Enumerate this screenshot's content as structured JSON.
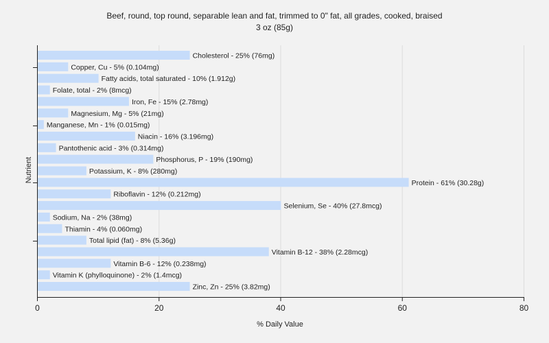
{
  "chart_data": {
    "type": "bar",
    "orientation": "horizontal",
    "title": "Beef, round, top round, separable lean and fat, trimmed to 0\" fat, all grades, cooked, braised",
    "subtitle": "3 oz (85g)",
    "xlabel": "% Daily Value",
    "ylabel": "Nutrient",
    "xlim": [
      0,
      80
    ],
    "xticks": [
      "0",
      "20",
      "40",
      "60",
      "80"
    ],
    "grid": true,
    "bar_color": "#c6dcfa",
    "categories": [
      "Cholesterol",
      "Copper, Cu",
      "Fatty acids, total saturated",
      "Folate, total",
      "Iron, Fe",
      "Magnesium, Mg",
      "Manganese, Mn",
      "Niacin",
      "Pantothenic acid",
      "Phosphorus, P",
      "Potassium, K",
      "Protein",
      "Riboflavin",
      "Selenium, Se",
      "Sodium, Na",
      "Thiamin",
      "Total lipid (fat)",
      "Vitamin B-12",
      "Vitamin B-6",
      "Vitamin K (phylloquinone)",
      "Zinc, Zn"
    ],
    "values": [
      25,
      5,
      10,
      2,
      15,
      5,
      1,
      16,
      3,
      19,
      8,
      61,
      12,
      40,
      2,
      4,
      8,
      38,
      12,
      2,
      25
    ],
    "labels": [
      "Cholesterol - 25% (76mg)",
      "Copper, Cu - 5% (0.104mg)",
      "Fatty acids, total saturated - 10% (1.912g)",
      "Folate, total - 2% (8mcg)",
      "Iron, Fe - 15% (2.78mg)",
      "Magnesium, Mg - 5% (21mg)",
      "Manganese, Mn - 1% (0.015mg)",
      "Niacin - 16% (3.196mg)",
      "Pantothenic acid - 3% (0.314mg)",
      "Phosphorus, P - 19% (190mg)",
      "Potassium, K - 8% (280mg)",
      "Protein - 61% (30.28g)",
      "Riboflavin - 12% (0.212mg)",
      "Selenium, Se - 40% (27.8mcg)",
      "Sodium, Na - 2% (38mg)",
      "Thiamin - 4% (0.060mg)",
      "Total lipid (fat) - 8% (5.36g)",
      "Vitamin B-12 - 38% (2.28mcg)",
      "Vitamin B-6 - 12% (0.238mg)",
      "Vitamin K (phylloquinone) - 2% (1.4mcg)",
      "Zinc, Zn - 25% (3.82mg)"
    ]
  }
}
